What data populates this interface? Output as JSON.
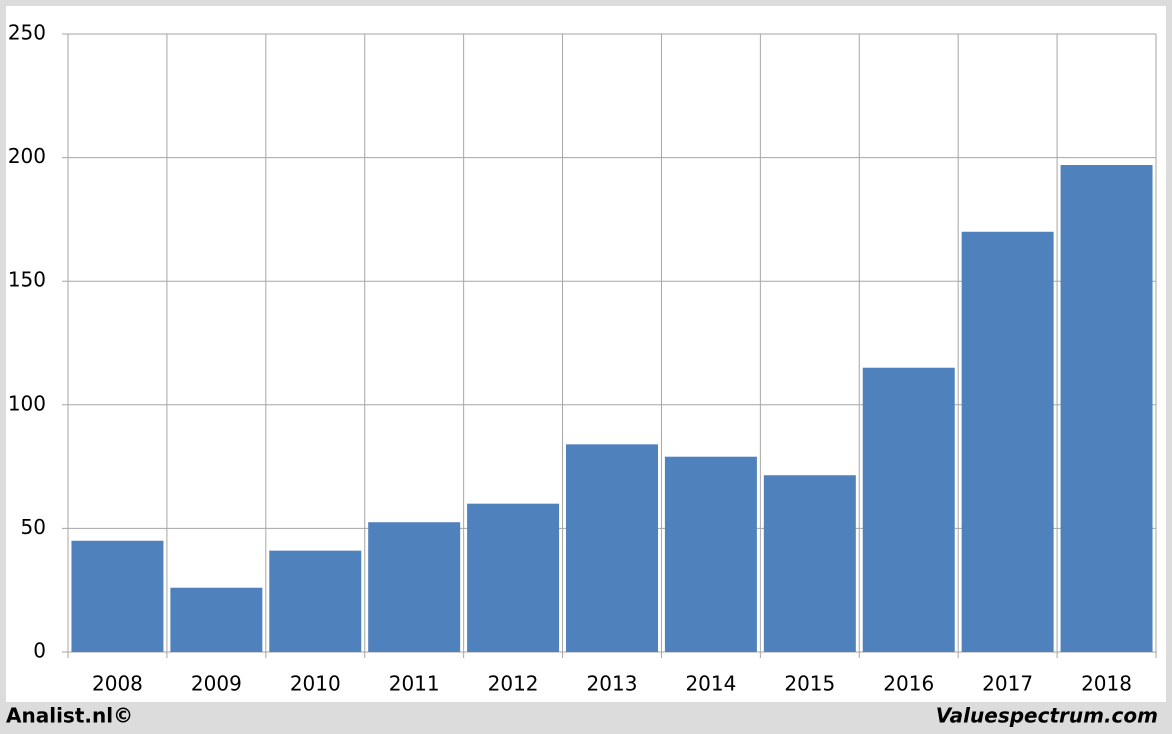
{
  "chart_data": {
    "type": "bar",
    "categories": [
      "2008",
      "2009",
      "2010",
      "2011",
      "2012",
      "2013",
      "2014",
      "2015",
      "2016",
      "2017",
      "2018"
    ],
    "values": [
      45,
      26,
      41,
      52.5,
      60,
      84,
      79,
      71.5,
      115,
      170,
      197
    ],
    "color": "#4f81bd",
    "ylim": [
      0,
      250
    ],
    "yticks": [
      0,
      50,
      100,
      150,
      200,
      250
    ],
    "grid": true,
    "footer_left": "Analist.nl©",
    "footer_right": "Valuespectrum.com"
  }
}
